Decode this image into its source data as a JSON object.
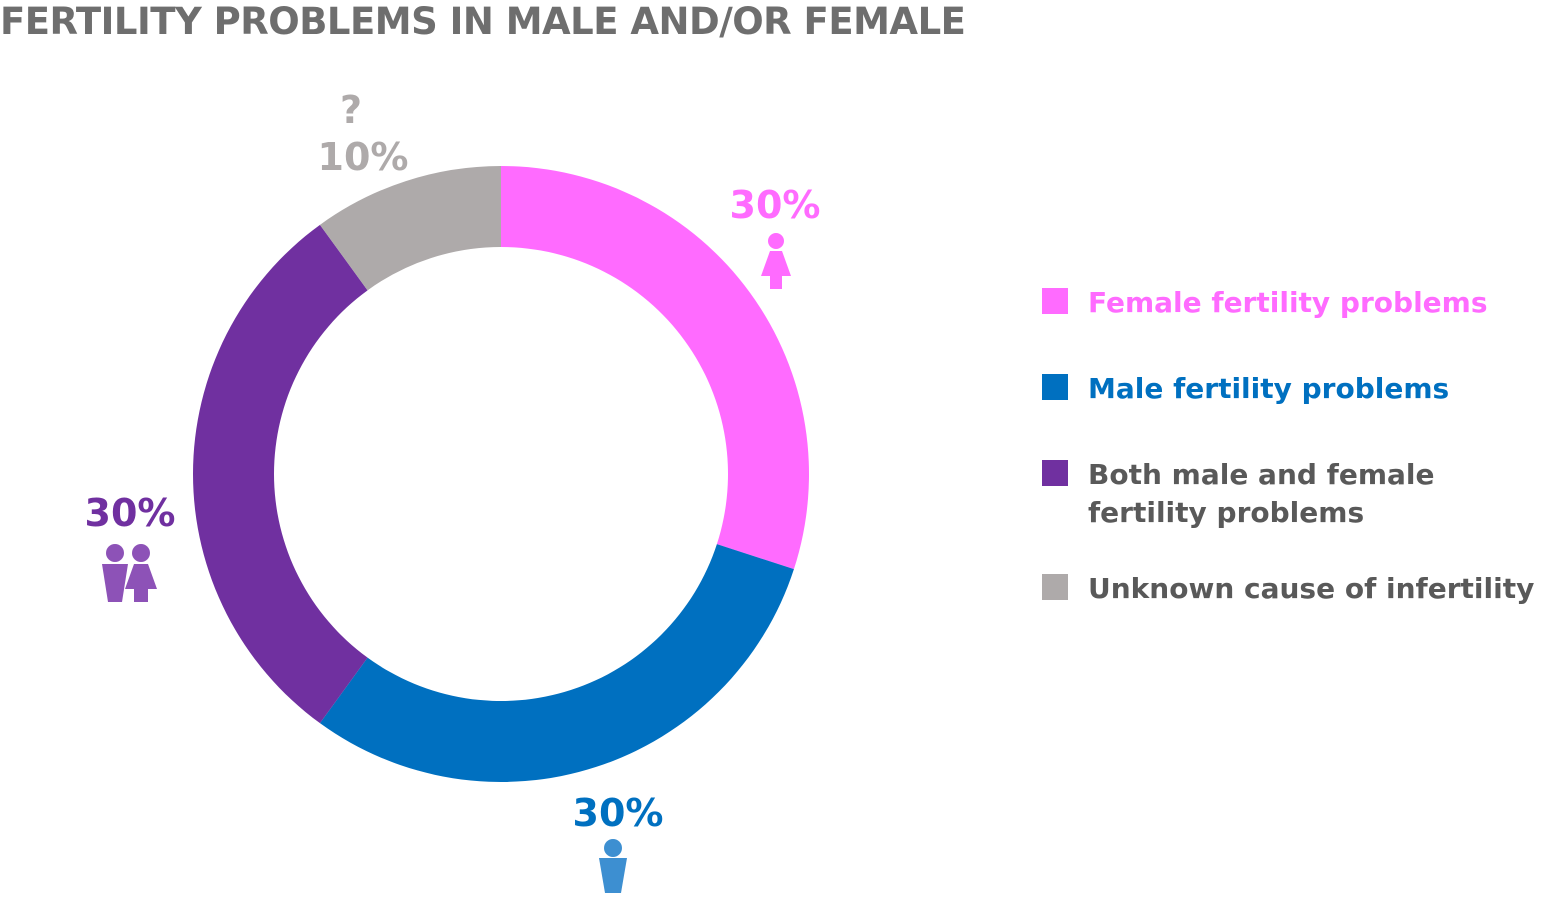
{
  "chart_data": {
    "type": "pie",
    "title": "FERTILITY PROBLEMS IN MALE AND/OR FEMALE",
    "categories": [
      "Female fertility problems",
      "Male fertility problems",
      "Both male and female fertility problems",
      "Unknown cause of infertility"
    ],
    "values": [
      30,
      30,
      30,
      10
    ],
    "data_labels": [
      "30%",
      "30%",
      "30%",
      "10%"
    ],
    "colors": [
      "#ff6bff",
      "#0070c0",
      "#7030a0",
      "#aeaaaa"
    ],
    "label_colors": [
      "#ff6bff",
      "#0070c0",
      "#7030a0",
      "#aeaaaa"
    ],
    "icons": [
      "female-icon",
      "male-icon",
      "couple-icon",
      "question-mark-icon"
    ],
    "unknown_symbol": "?",
    "donut": true,
    "legend_position": "right",
    "legend_label_colors": [
      "#ff6bff",
      "#0070c0",
      "#595959",
      "#595959"
    ]
  }
}
